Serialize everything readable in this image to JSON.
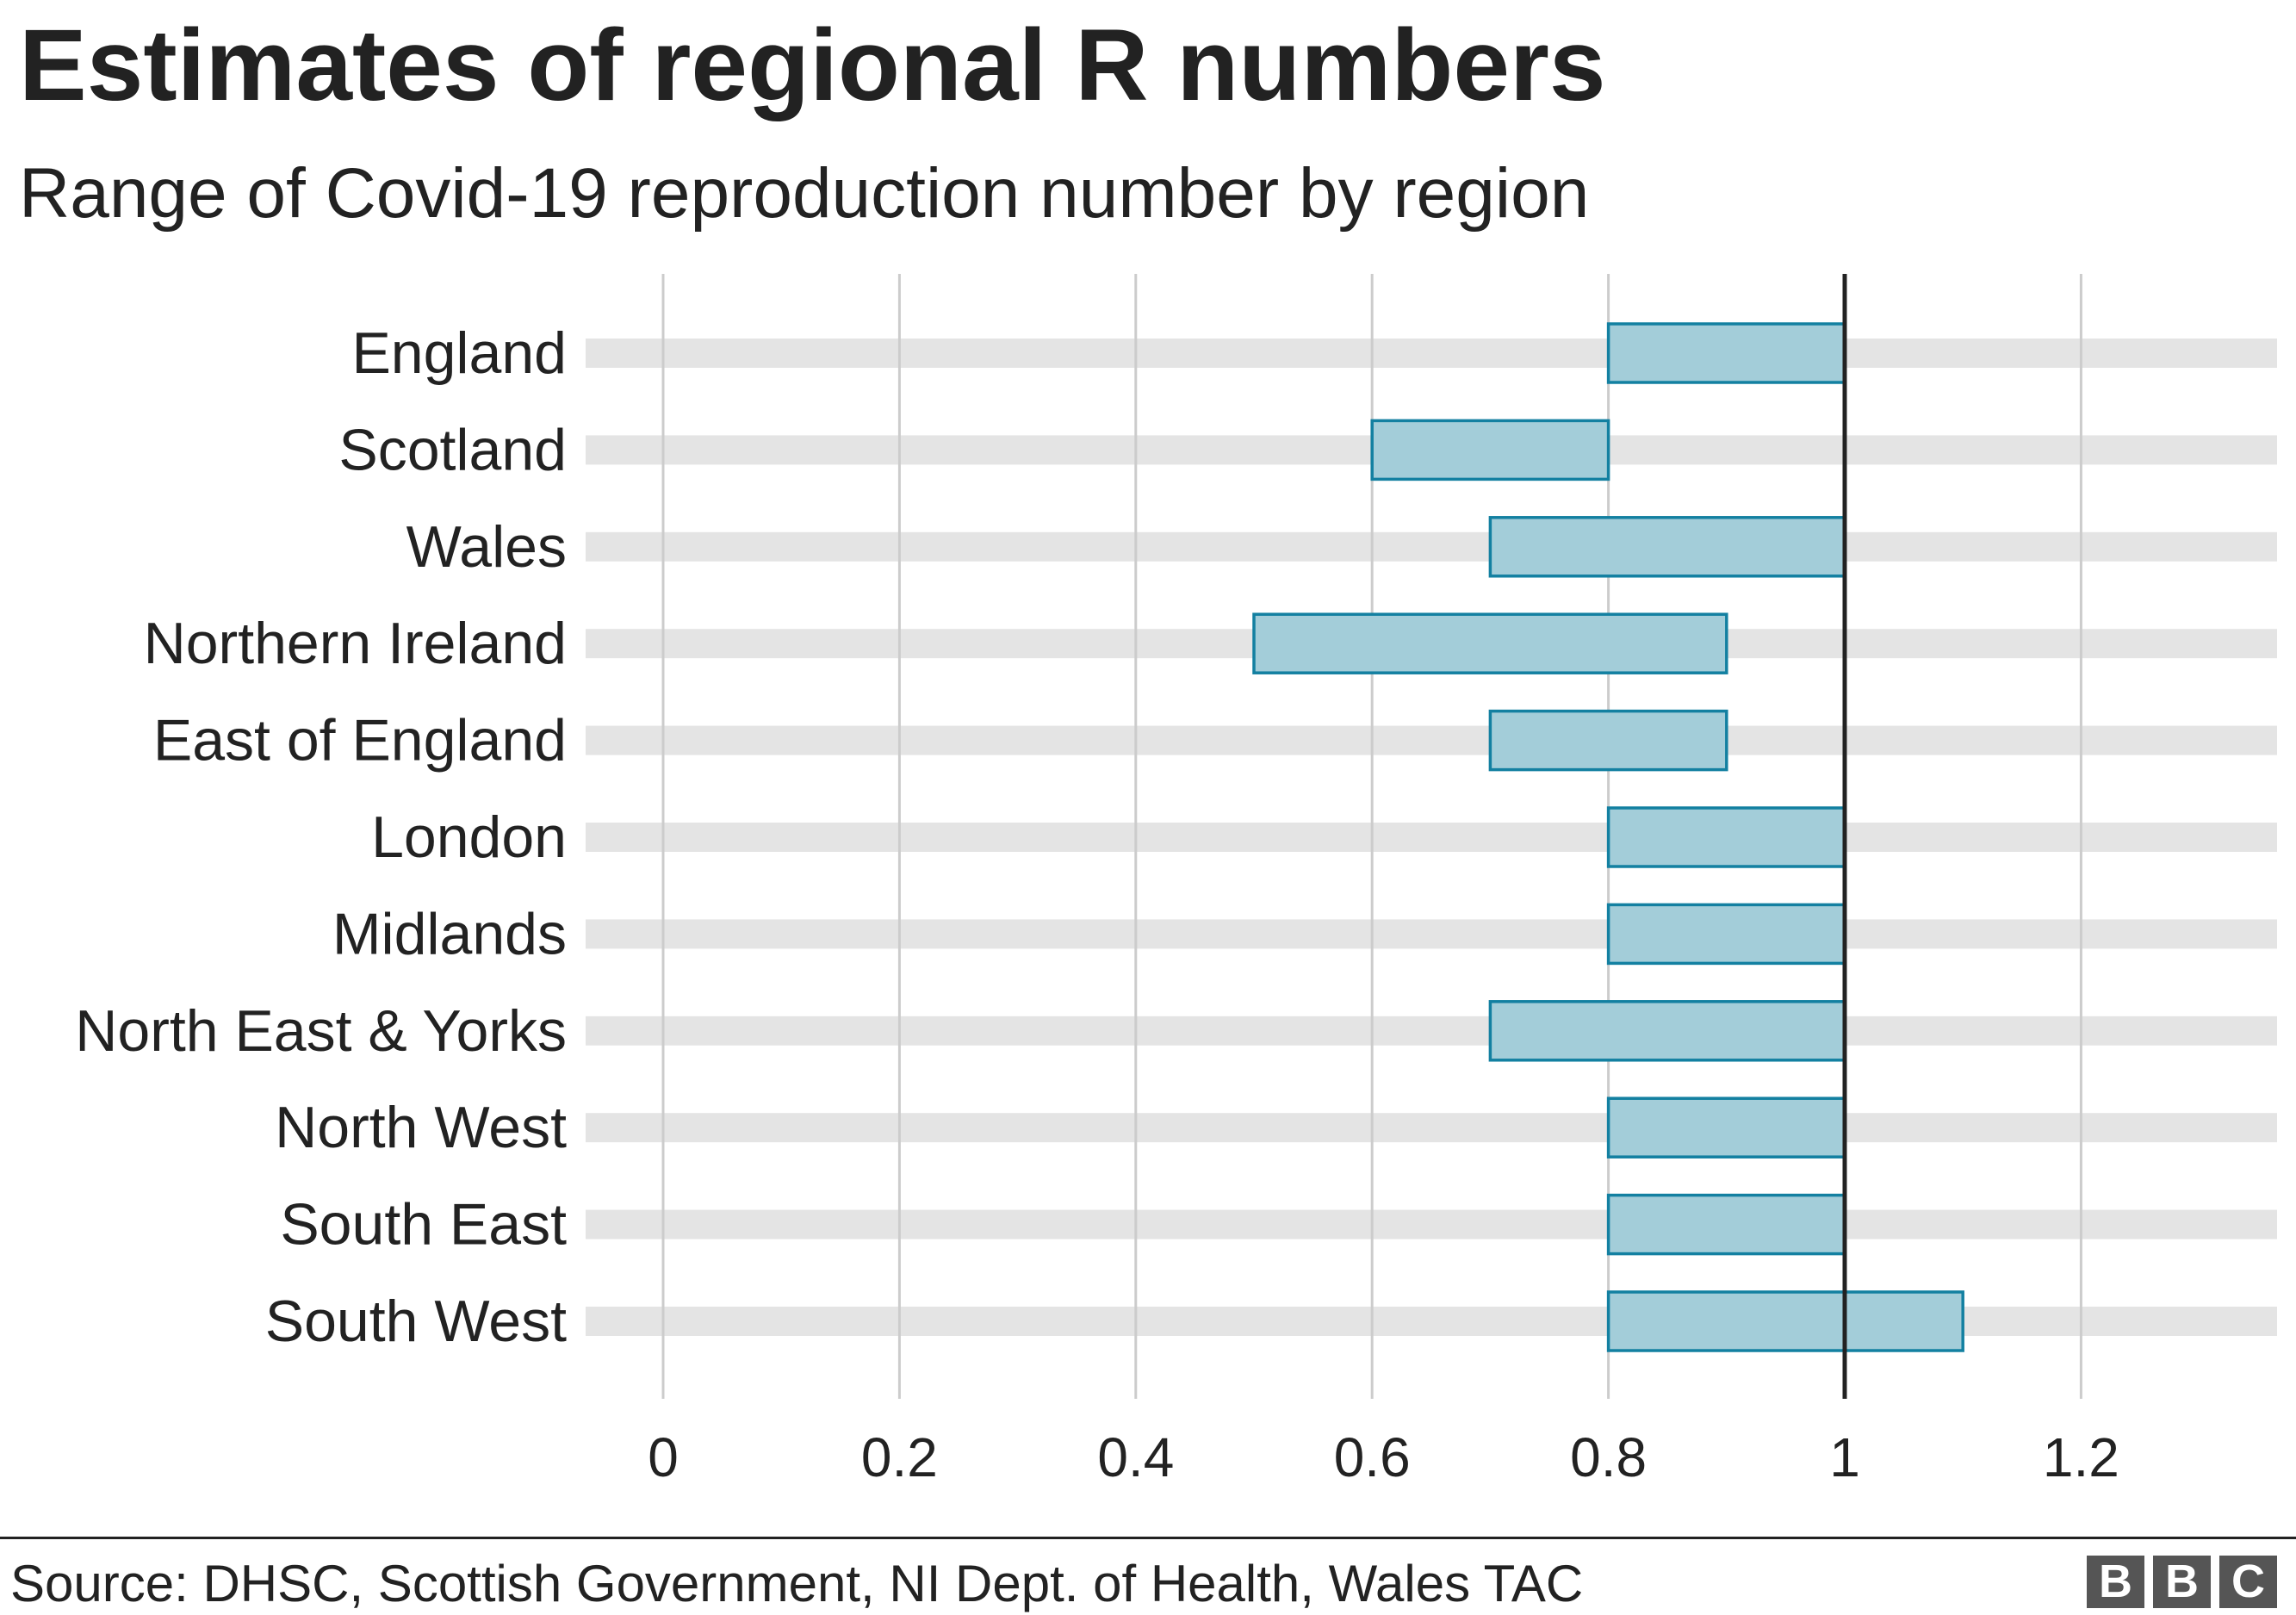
{
  "chart_data": {
    "type": "bar",
    "subtype": "floating-range",
    "title": "Estimates of regional R numbers",
    "subtitle": "Range of Covid-19 reproduction number by region",
    "categories": [
      "England",
      "Scotland",
      "Wales",
      "Northern Ireland",
      "East of England",
      "London",
      "Midlands",
      "North East & Yorks",
      "North West",
      "South East",
      "South West"
    ],
    "ranges": [
      [
        0.8,
        1.0
      ],
      [
        0.6,
        0.8
      ],
      [
        0.7,
        1.0
      ],
      [
        0.5,
        0.9
      ],
      [
        0.7,
        0.9
      ],
      [
        0.8,
        1.0
      ],
      [
        0.8,
        1.0
      ],
      [
        0.7,
        1.0
      ],
      [
        0.8,
        1.0
      ],
      [
        0.8,
        1.0
      ],
      [
        0.8,
        1.1
      ]
    ],
    "xticks": [
      "0",
      "0.2",
      "0.4",
      "0.6",
      "0.8",
      "1",
      "1.2"
    ],
    "xtick_values": [
      0,
      0.2,
      0.4,
      0.6,
      0.8,
      1,
      1.2
    ],
    "xlim": [
      -0.033,
      1.36
    ],
    "reference_line": 1,
    "grid": true,
    "colors": {
      "bar_fill": "#a3cdd9",
      "bar_stroke": "#1380a1",
      "band": "#e4e4e4",
      "grid": "#cccccc",
      "reference": "#222222"
    }
  },
  "footer": {
    "source": "Source: DHSC, Scottish Government, NI Dept. of Health, Wales TAC",
    "logo": [
      "B",
      "B",
      "C"
    ]
  }
}
